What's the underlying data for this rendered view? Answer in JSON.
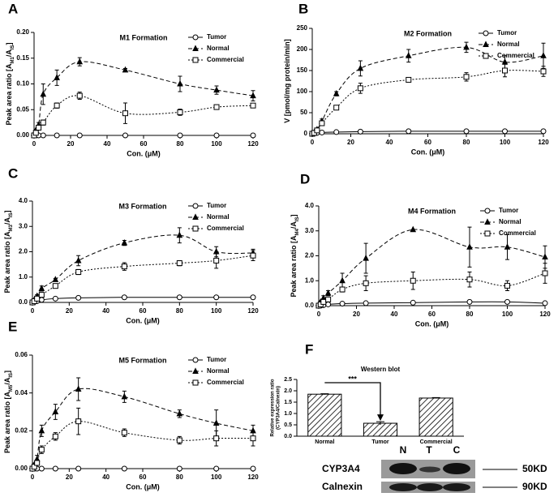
{
  "chart_data": [
    {
      "type": "line",
      "panel": "A",
      "title": "M1 Formation",
      "xlabel": "Con. (μM)",
      "ylabel": [
        "Peak area ratio [A",
        "M1",
        "/A",
        "IS",
        "]"
      ],
      "x": [
        0,
        1,
        2.5,
        5,
        12.5,
        25,
        50,
        80,
        100,
        120
      ],
      "xlim": [
        0,
        120
      ],
      "xticks": [
        0,
        20,
        40,
        60,
        80,
        100,
        120
      ],
      "ylim": [
        0,
        0.2
      ],
      "yticks": [
        {
          "value": 0,
          "label": "0.00"
        },
        {
          "value": 0.05,
          "label": "0.05"
        },
        {
          "value": 0.1,
          "label": "0.10"
        },
        {
          "value": 0.15,
          "label": "0.15"
        },
        {
          "value": 0.2,
          "label": "0.20"
        }
      ],
      "legend": "upper right",
      "series": [
        {
          "name": "Tumor",
          "color": "#000000",
          "marker": "circle",
          "line": "solid",
          "values": [
            0,
            0,
            0,
            0,
            0,
            0,
            0,
            0,
            0,
            0
          ],
          "errors": [
            0,
            0,
            0,
            0,
            0,
            0,
            0,
            0,
            0,
            0
          ]
        },
        {
          "name": "Normal",
          "color": "#000000",
          "marker": "triangle",
          "line": "dashed",
          "values": [
            0,
            0.01,
            0.02,
            0.08,
            0.112,
            0.143,
            0.127,
            0.1,
            0.088,
            0.077
          ],
          "errors": [
            0,
            0.002,
            0.005,
            0.02,
            0.015,
            0.008,
            0.003,
            0.015,
            0.008,
            0.01
          ]
        },
        {
          "name": "Commercial",
          "color": "#000000",
          "marker": "square",
          "line": "dotted",
          "values": [
            0,
            0.005,
            0.015,
            0.025,
            0.058,
            0.077,
            0.043,
            0.045,
            0.055,
            0.058
          ],
          "errors": [
            0,
            0.002,
            0.004,
            0.005,
            0.005,
            0.007,
            0.02,
            0.006,
            0.004,
            0.004
          ]
        }
      ]
    },
    {
      "type": "line",
      "panel": "B",
      "title": "M2 Formation",
      "xlabel": "Con. (μM)",
      "ylabel": [
        "V [pmol/mg protein/min]"
      ],
      "x": [
        0,
        1,
        2.5,
        5,
        12.5,
        25,
        50,
        80,
        100,
        120
      ],
      "xlim": [
        0,
        120
      ],
      "xticks": [
        0,
        20,
        40,
        60,
        80,
        100,
        120
      ],
      "ylim": [
        0,
        250
      ],
      "yticks": [
        0,
        50,
        100,
        150,
        200,
        250
      ],
      "legend": "upper right",
      "series": [
        {
          "name": "Tumor",
          "color": "#000000",
          "marker": "circle",
          "line": "solid",
          "values": [
            0,
            1,
            2,
            3,
            4,
            5,
            6,
            6,
            6,
            6
          ],
          "errors": [
            0,
            0,
            0,
            0,
            0,
            0,
            0,
            0,
            0,
            0
          ]
        },
        {
          "name": "Normal",
          "color": "#000000",
          "marker": "triangle",
          "line": "dashed",
          "values": [
            0,
            3,
            10,
            30,
            95,
            155,
            185,
            205,
            170,
            185
          ],
          "errors": [
            0,
            1,
            2,
            5,
            5,
            18,
            15,
            12,
            15,
            30
          ]
        },
        {
          "name": "Commercial",
          "color": "#000000",
          "marker": "square",
          "line": "dotted",
          "values": [
            0,
            2,
            8,
            25,
            62,
            108,
            128,
            135,
            150,
            148
          ],
          "errors": [
            0,
            1,
            2,
            4,
            5,
            12,
            5,
            10,
            15,
            12
          ]
        }
      ]
    },
    {
      "type": "line",
      "panel": "C",
      "title": "M3 Formation",
      "xlabel": "Con. (μM)",
      "ylabel": [
        "Peak area ratio [A",
        "M3",
        "/A",
        "IS",
        "]"
      ],
      "x": [
        0,
        1,
        2.5,
        5,
        12.5,
        25,
        50,
        80,
        100,
        120
      ],
      "xlim": [
        0,
        120
      ],
      "xticks": [
        0,
        20,
        40,
        60,
        80,
        100,
        120
      ],
      "ylim": [
        0,
        4
      ],
      "yticks": [
        {
          "value": 0,
          "label": "0.0"
        },
        {
          "value": 1,
          "label": "1.0"
        },
        {
          "value": 2,
          "label": "2.0"
        },
        {
          "value": 3,
          "label": "3.0"
        },
        {
          "value": 4,
          "label": "4.0"
        }
      ],
      "legend": "upper right",
      "series": [
        {
          "name": "Tumor",
          "color": "#000000",
          "marker": "circle",
          "line": "solid",
          "values": [
            0,
            0.02,
            0.05,
            0.1,
            0.15,
            0.18,
            0.2,
            0.2,
            0.2,
            0.2
          ],
          "errors": [
            0,
            0,
            0,
            0,
            0,
            0,
            0,
            0,
            0,
            0
          ]
        },
        {
          "name": "Normal",
          "color": "#000000",
          "marker": "triangle",
          "line": "dashed",
          "values": [
            0,
            0.1,
            0.25,
            0.55,
            0.9,
            1.65,
            2.35,
            2.65,
            2.0,
            1.95
          ],
          "errors": [
            0,
            0.02,
            0.05,
            0.1,
            0.05,
            0.2,
            0.1,
            0.3,
            0.2,
            0.15
          ]
        },
        {
          "name": "Commercial",
          "color": "#000000",
          "marker": "square",
          "line": "dotted",
          "values": [
            0,
            0.05,
            0.15,
            0.3,
            0.65,
            1.2,
            1.42,
            1.55,
            1.65,
            1.85
          ],
          "errors": [
            0,
            0.02,
            0.03,
            0.05,
            0.05,
            0.1,
            0.15,
            0.1,
            0.3,
            0.2
          ]
        }
      ]
    },
    {
      "type": "line",
      "panel": "D",
      "title": "M4 Formation",
      "xlabel": "Con. (μM)",
      "ylabel": [
        "Peak area ratio [A",
        "M4",
        "/A",
        "IS",
        "]"
      ],
      "x": [
        0,
        1,
        2.5,
        5,
        12.5,
        25,
        50,
        80,
        100,
        120
      ],
      "xlim": [
        0,
        120
      ],
      "xticks": [
        0,
        20,
        40,
        60,
        80,
        100,
        120
      ],
      "ylim": [
        0,
        4
      ],
      "yticks": [
        {
          "value": 0,
          "label": "0.0"
        },
        {
          "value": 1,
          "label": "1.0"
        },
        {
          "value": 2,
          "label": "2.0"
        },
        {
          "value": 3,
          "label": "3.0"
        },
        {
          "value": 4,
          "label": "4.0"
        }
      ],
      "legend": "upper right",
      "series": [
        {
          "name": "Tumor",
          "color": "#000000",
          "marker": "circle",
          "line": "solid",
          "values": [
            0,
            0.01,
            0.02,
            0.05,
            0.08,
            0.1,
            0.12,
            0.15,
            0.15,
            0.1
          ],
          "errors": [
            0,
            0,
            0,
            0,
            0,
            0,
            0,
            0,
            0,
            0
          ]
        },
        {
          "name": "Normal",
          "color": "#000000",
          "marker": "triangle",
          "line": "dashed",
          "values": [
            0,
            0.15,
            0.3,
            0.5,
            1.0,
            1.9,
            3.05,
            2.35,
            2.35,
            1.95
          ],
          "errors": [
            0,
            0.05,
            0.1,
            0.1,
            0.3,
            0.6,
            0,
            0.8,
            0.5,
            0.45
          ]
        },
        {
          "name": "Commercial",
          "color": "#000000",
          "marker": "square",
          "line": "dotted",
          "values": [
            0,
            0.05,
            0.15,
            0.25,
            0.65,
            0.9,
            1.0,
            1.05,
            0.8,
            1.3
          ],
          "errors": [
            0,
            0.02,
            0.05,
            0.05,
            0.1,
            0.3,
            0.35,
            0.3,
            0.2,
            0.4
          ]
        }
      ]
    },
    {
      "type": "line",
      "panel": "E",
      "title": "M5 Formation",
      "xlabel": "Con. (μM)",
      "ylabel": [
        "Peak area ratio [A",
        "M5",
        "/A",
        "IS",
        "]"
      ],
      "x": [
        0,
        1,
        2.5,
        5,
        12.5,
        25,
        50,
        80,
        100,
        120
      ],
      "xlim": [
        0,
        120
      ],
      "xticks": [
        0,
        20,
        40,
        60,
        80,
        100,
        120
      ],
      "ylim": [
        0,
        0.06
      ],
      "yticks": [
        {
          "value": 0,
          "label": "0.00"
        },
        {
          "value": 0.02,
          "label": "0.02"
        },
        {
          "value": 0.04,
          "label": "0.04"
        },
        {
          "value": 0.06,
          "label": "0.06"
        }
      ],
      "legend": "upper right",
      "series": [
        {
          "name": "Tumor",
          "color": "#000000",
          "marker": "circle",
          "line": "solid",
          "values": [
            0,
            0,
            0,
            0,
            0,
            0,
            0,
            0,
            0,
            0
          ],
          "errors": [
            0,
            0,
            0,
            0,
            0,
            0,
            0,
            0,
            0,
            0
          ]
        },
        {
          "name": "Normal",
          "color": "#000000",
          "marker": "triangle",
          "line": "dashed",
          "values": [
            0,
            0.002,
            0.005,
            0.02,
            0.03,
            0.042,
            0.038,
            0.029,
            0.024,
            0.02
          ],
          "errors": [
            0,
            0.001,
            0.002,
            0.003,
            0.004,
            0.006,
            0.003,
            0.002,
            0.007,
            0.003
          ]
        },
        {
          "name": "Commercial",
          "color": "#000000",
          "marker": "square",
          "line": "dotted",
          "values": [
            0,
            0.001,
            0.003,
            0.01,
            0.017,
            0.025,
            0.019,
            0.015,
            0.016,
            0.016
          ],
          "errors": [
            0,
            0.0005,
            0.001,
            0.002,
            0.002,
            0.007,
            0.002,
            0.002,
            0.004,
            0.004
          ]
        }
      ]
    },
    {
      "type": "bar",
      "panel": "F",
      "title": "Western blot",
      "ylabel": [
        "Relative expression ratio",
        "(CYP3A4/Calnexin)"
      ],
      "annotation": "***",
      "categories": [
        "Normal",
        "Tumor",
        "Commercial"
      ],
      "values": [
        1.85,
        0.57,
        1.68
      ],
      "errors": [
        0.02,
        0.07,
        0.02
      ],
      "color": "#000000",
      "ylim": [
        0,
        2.5
      ],
      "yticks": [
        {
          "value": 0,
          "label": "0.0"
        },
        {
          "value": 0.5,
          "label": "0.5"
        },
        {
          "value": 1,
          "label": "1.0"
        },
        {
          "value": 1.5,
          "label": "1.5"
        },
        {
          "value": 2,
          "label": "2.0"
        },
        {
          "value": 2.5,
          "label": "2.5"
        }
      ]
    }
  ],
  "blot": {
    "lanes": [
      "N",
      "T",
      "C"
    ],
    "rows": [
      "CYP3A4",
      "Calnexin"
    ],
    "sizes": [
      "50KD",
      "90KD"
    ]
  }
}
